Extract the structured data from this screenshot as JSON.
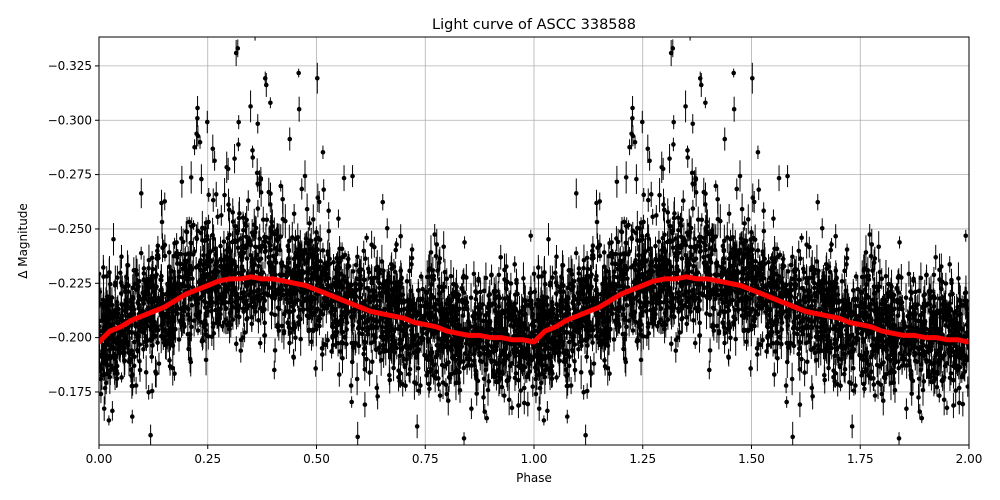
{
  "chart_data": {
    "type": "scatter",
    "title": "Light curve of ASCC 338588",
    "xlabel": "Phase",
    "ylabel": "Δ Magnitude",
    "xlim": [
      0.0,
      2.0
    ],
    "ylim": [
      -0.1506,
      -0.3383
    ],
    "y_inverted": true,
    "grid": true,
    "xticks": [
      "0.00",
      "0.25",
      "0.50",
      "0.75",
      "1.00",
      "1.25",
      "1.50",
      "1.75",
      "2.00"
    ],
    "yticks": [
      "-0.325",
      "-0.300",
      "-0.275",
      "-0.250",
      "-0.225",
      "-0.200",
      "-0.175"
    ],
    "points_color": "#000000",
    "model_color": "#ff0000",
    "model_curve": {
      "x": [
        0.0,
        0.025,
        0.05,
        0.075,
        0.1,
        0.125,
        0.15,
        0.175,
        0.2,
        0.225,
        0.25,
        0.275,
        0.3,
        0.325,
        0.35,
        0.375,
        0.4,
        0.425,
        0.45,
        0.475,
        0.5,
        0.525,
        0.55,
        0.575,
        0.6,
        0.625,
        0.65,
        0.675,
        0.7,
        0.725,
        0.75,
        0.775,
        0.8,
        0.825,
        0.85,
        0.875,
        0.9,
        0.925,
        0.95,
        0.975,
        1.0,
        1.025,
        1.05,
        1.075,
        1.1,
        1.125,
        1.15,
        1.175,
        1.2,
        1.225,
        1.25,
        1.275,
        1.3,
        1.325,
        1.35,
        1.375,
        1.4,
        1.425,
        1.45,
        1.475,
        1.5,
        1.525,
        1.55,
        1.575,
        1.6,
        1.625,
        1.65,
        1.675,
        1.7,
        1.725,
        1.75,
        1.775,
        1.8,
        1.825,
        1.85,
        1.875,
        1.9,
        1.925,
        1.95,
        1.975,
        2.0
      ],
      "y": [
        -0.198,
        -0.203,
        -0.205,
        -0.208,
        -0.21,
        -0.212,
        -0.214,
        -0.217,
        -0.22,
        -0.222,
        -0.224,
        -0.226,
        -0.227,
        -0.227,
        -0.228,
        -0.227,
        -0.227,
        -0.226,
        -0.225,
        -0.224,
        -0.222,
        -0.22,
        -0.218,
        -0.216,
        -0.214,
        -0.212,
        -0.211,
        -0.21,
        -0.209,
        -0.207,
        -0.206,
        -0.205,
        -0.203,
        -0.202,
        -0.201,
        -0.201,
        -0.2,
        -0.2,
        -0.199,
        -0.199,
        -0.198,
        -0.203,
        -0.205,
        -0.208,
        -0.21,
        -0.212,
        -0.214,
        -0.217,
        -0.22,
        -0.222,
        -0.224,
        -0.226,
        -0.227,
        -0.227,
        -0.228,
        -0.227,
        -0.227,
        -0.226,
        -0.225,
        -0.224,
        -0.222,
        -0.22,
        -0.218,
        -0.216,
        -0.214,
        -0.212,
        -0.211,
        -0.21,
        -0.209,
        -0.207,
        -0.206,
        -0.205,
        -0.203,
        -0.202,
        -0.201,
        -0.201,
        -0.2,
        -0.2,
        -0.199,
        -0.199,
        -0.198
      ]
    }
  }
}
